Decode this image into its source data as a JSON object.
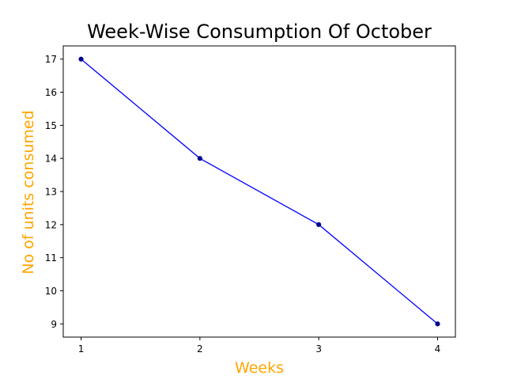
{
  "chart_data": {
    "type": "line",
    "title": "Week-Wise Consumption Of October",
    "xlabel": "Weeks",
    "ylabel": "No of units consumed",
    "x": [
      1,
      2,
      3,
      4
    ],
    "series": [
      {
        "values": [
          17,
          14,
          12,
          9
        ],
        "color": "#0000ff",
        "marker": "circle",
        "marker_color": "#00008b"
      }
    ],
    "xticks": [
      1,
      2,
      3,
      4
    ],
    "yticks": [
      9,
      10,
      11,
      12,
      13,
      14,
      15,
      16,
      17
    ],
    "xlim": [
      0.85,
      4.15
    ],
    "ylim": [
      8.6,
      17.4
    ],
    "grid": false,
    "label_color": "#ffa500",
    "title_color": "#000000"
  }
}
